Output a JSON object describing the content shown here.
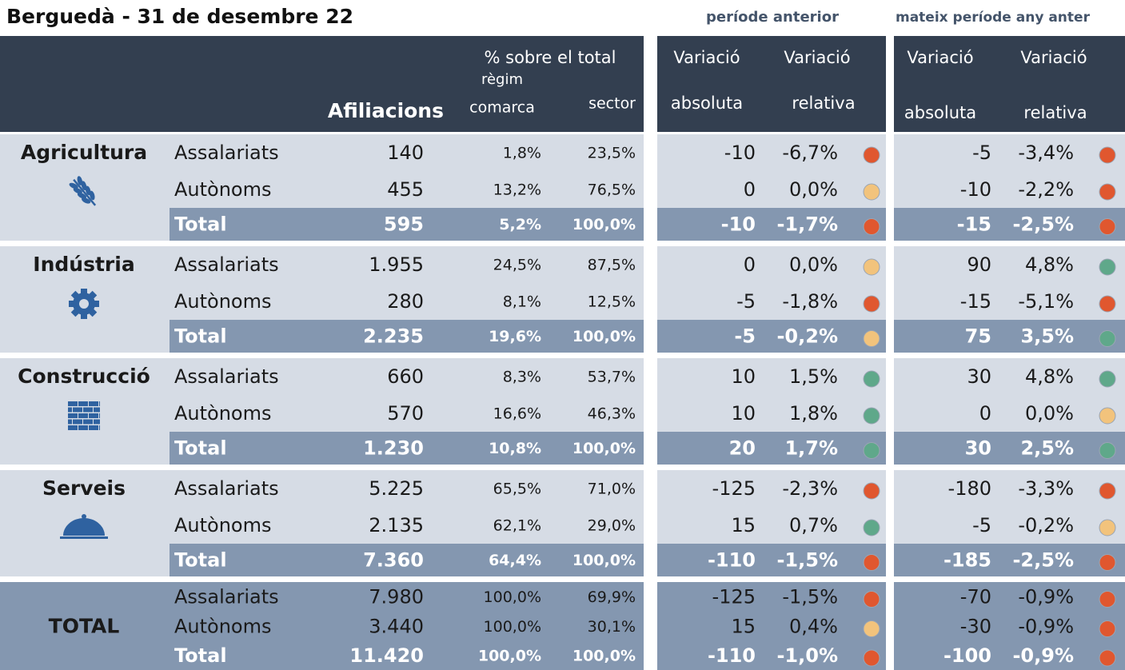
{
  "title": "Berguedà - 31 de desembre 22",
  "groups": {
    "prev": "període anterior",
    "year": "mateix període any anter"
  },
  "header": {
    "pct_total": "% sobre el total",
    "regim": "règim",
    "comarca": "comarca",
    "sector": "sector",
    "afiliacions": "Afiliacions",
    "prev": {
      "var1": "Variació",
      "abs": "absoluta",
      "var2": "Variació",
      "rel": "relativa"
    },
    "year": {
      "var1": "Variació",
      "abs": "absoluta",
      "var2": "Variació",
      "rel": "relativa"
    }
  },
  "blocks": [
    {
      "name": "Agricultura",
      "icon": "wheat",
      "rows": [
        {
          "type": "Assalariats",
          "afiliacions": "140",
          "comarca": "1,8%",
          "sector": "23,5%",
          "prev": {
            "abs": "-10",
            "rel": "-6,7%",
            "status": "#e0572f"
          },
          "year": {
            "abs": "-5",
            "rel": "-3,4%",
            "status": "#e0572f"
          }
        },
        {
          "type": "Autònoms",
          "afiliacions": "455",
          "comarca": "13,2%",
          "sector": "76,5%",
          "prev": {
            "abs": "0",
            "rel": "0,0%",
            "status": "#f2c37c"
          },
          "year": {
            "abs": "-10",
            "rel": "-2,2%",
            "status": "#e0572f"
          }
        },
        {
          "type": "Total",
          "afiliacions": "595",
          "comarca": "5,2%",
          "sector": "100,0%",
          "prev": {
            "abs": "-10",
            "rel": "-1,7%",
            "status": "#e0572f"
          },
          "year": {
            "abs": "-15",
            "rel": "-2,5%",
            "status": "#e0572f"
          }
        }
      ]
    },
    {
      "name": "Indústria",
      "icon": "gear",
      "rows": [
        {
          "type": "Assalariats",
          "afiliacions": "1.955",
          "comarca": "24,5%",
          "sector": "87,5%",
          "prev": {
            "abs": "0",
            "rel": "0,0%",
            "status": "#f2c37c"
          },
          "year": {
            "abs": "90",
            "rel": "4,8%",
            "status": "#5fa88a"
          }
        },
        {
          "type": "Autònoms",
          "afiliacions": "280",
          "comarca": "8,1%",
          "sector": "12,5%",
          "prev": {
            "abs": "-5",
            "rel": "-1,8%",
            "status": "#e0572f"
          },
          "year": {
            "abs": "-15",
            "rel": "-5,1%",
            "status": "#e0572f"
          }
        },
        {
          "type": "Total",
          "afiliacions": "2.235",
          "comarca": "19,6%",
          "sector": "100,0%",
          "prev": {
            "abs": "-5",
            "rel": "-0,2%",
            "status": "#f2c37c"
          },
          "year": {
            "abs": "75",
            "rel": "3,5%",
            "status": "#5fa88a"
          }
        }
      ]
    },
    {
      "name": "Construcció",
      "icon": "bricks",
      "rows": [
        {
          "type": "Assalariats",
          "afiliacions": "660",
          "comarca": "8,3%",
          "sector": "53,7%",
          "prev": {
            "abs": "10",
            "rel": "1,5%",
            "status": "#5fa88a"
          },
          "year": {
            "abs": "30",
            "rel": "4,8%",
            "status": "#5fa88a"
          }
        },
        {
          "type": "Autònoms",
          "afiliacions": "570",
          "comarca": "16,6%",
          "sector": "46,3%",
          "prev": {
            "abs": "10",
            "rel": "1,8%",
            "status": "#5fa88a"
          },
          "year": {
            "abs": "0",
            "rel": "0,0%",
            "status": "#f2c37c"
          }
        },
        {
          "type": "Total",
          "afiliacions": "1.230",
          "comarca": "10,8%",
          "sector": "100,0%",
          "prev": {
            "abs": "20",
            "rel": "1,7%",
            "status": "#5fa88a"
          },
          "year": {
            "abs": "30",
            "rel": "2,5%",
            "status": "#5fa88a"
          }
        }
      ]
    },
    {
      "name": "Serveis",
      "icon": "dome",
      "rows": [
        {
          "type": "Assalariats",
          "afiliacions": "5.225",
          "comarca": "65,5%",
          "sector": "71,0%",
          "prev": {
            "abs": "-125",
            "rel": "-2,3%",
            "status": "#e0572f"
          },
          "year": {
            "abs": "-180",
            "rel": "-3,3%",
            "status": "#e0572f"
          }
        },
        {
          "type": "Autònoms",
          "afiliacions": "2.135",
          "comarca": "62,1%",
          "sector": "29,0%",
          "prev": {
            "abs": "15",
            "rel": "0,7%",
            "status": "#5fa88a"
          },
          "year": {
            "abs": "-5",
            "rel": "-0,2%",
            "status": "#f2c37c"
          }
        },
        {
          "type": "Total",
          "afiliacions": "7.360",
          "comarca": "64,4%",
          "sector": "100,0%",
          "prev": {
            "abs": "-110",
            "rel": "-1,5%",
            "status": "#e0572f"
          },
          "year": {
            "abs": "-185",
            "rel": "-2,5%",
            "status": "#e0572f"
          }
        }
      ]
    },
    {
      "name": "TOTAL",
      "rows": [
        {
          "type": "Assalariats",
          "afiliacions": "7.980",
          "comarca": "100,0%",
          "sector": "69,9%",
          "prev": {
            "abs": "-125",
            "rel": "-1,5%",
            "status": "#e0572f"
          },
          "year": {
            "abs": "-70",
            "rel": "-0,9%",
            "status": "#e0572f"
          }
        },
        {
          "type": "Autònoms",
          "afiliacions": "3.440",
          "comarca": "100,0%",
          "sector": "30,1%",
          "prev": {
            "abs": "15",
            "rel": "0,4%",
            "status": "#f2c37c"
          },
          "year": {
            "abs": "-30",
            "rel": "-0,9%",
            "status": "#e0572f"
          }
        },
        {
          "type": "Total",
          "afiliacions": "11.420",
          "comarca": "100,0%",
          "sector": "100,0%",
          "prev": {
            "abs": "-110",
            "rel": "-1,0%",
            "status": "#e0572f"
          },
          "year": {
            "abs": "-100",
            "rel": "-0,9%",
            "status": "#e0572f"
          }
        }
      ]
    }
  ]
}
